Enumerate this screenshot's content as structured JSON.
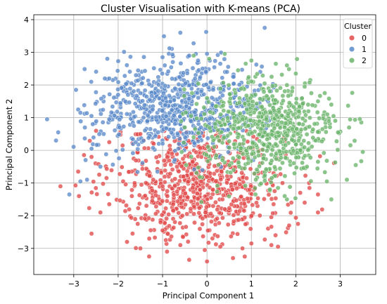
{
  "chart_data": {
    "type": "scatter",
    "title": "Cluster Visualisation with K-means (PCA)",
    "xlabel": "Principal Component 1",
    "ylabel": "Principal Component 2",
    "xlim": [
      -3.9,
      3.8
    ],
    "ylim": [
      -3.8,
      4.15
    ],
    "xticks": [
      -3,
      -2,
      -1,
      0,
      1,
      2,
      3
    ],
    "yticks": [
      -3,
      -2,
      -1,
      0,
      1,
      2,
      3,
      4
    ],
    "grid": true,
    "legend": {
      "title": "Cluster",
      "placement": "top-right"
    },
    "series": [
      {
        "name": "0",
        "color": "#e24a4a",
        "center": [
          -0.2,
          -1.05
        ],
        "spread": [
          0.95,
          0.85
        ],
        "count": 700,
        "points": [
          [
            -3.3,
            -1.1
          ],
          [
            -2.6,
            -2.55
          ],
          [
            -2.4,
            -1.9
          ],
          [
            -2.2,
            -1.65
          ],
          [
            -1.8,
            -2.8
          ],
          [
            -1.5,
            -3.0
          ],
          [
            -1.3,
            -2.7
          ],
          [
            -1.0,
            -2.45
          ],
          [
            -0.9,
            -3.1
          ],
          [
            -0.6,
            -2.9
          ],
          [
            -0.4,
            -3.35
          ],
          [
            -0.05,
            -3.05
          ],
          [
            0.0,
            -3.4
          ],
          [
            0.3,
            -2.95
          ],
          [
            0.8,
            -3.0
          ],
          [
            1.0,
            -2.85
          ],
          [
            0.85,
            -3.25
          ],
          [
            1.45,
            -2.9
          ],
          [
            1.6,
            -2.95
          ],
          [
            1.85,
            -2.3
          ],
          [
            2.05,
            -2.25
          ],
          [
            2.2,
            -1.6
          ],
          [
            2.5,
            -1.9
          ],
          [
            1.9,
            -1.6
          ],
          [
            1.5,
            -1.65
          ],
          [
            2.1,
            -1.3
          ],
          [
            -2.9,
            -0.65
          ],
          [
            -2.6,
            -0.2
          ],
          [
            -2.2,
            0.25
          ],
          [
            -1.9,
            0.15
          ],
          [
            -1.5,
            0.5
          ],
          [
            -1.2,
            0.2
          ],
          [
            -0.9,
            0.35
          ],
          [
            -0.6,
            0.55
          ],
          [
            0.2,
            0.45
          ],
          [
            0.5,
            0.1
          ],
          [
            0.9,
            -0.2
          ],
          [
            1.2,
            -0.4
          ],
          [
            1.5,
            -0.7
          ],
          [
            1.7,
            -1.0
          ],
          [
            2.3,
            -1.0
          ],
          [
            2.5,
            -1.35
          ]
        ]
      },
      {
        "name": "1",
        "color": "#5b8bc9",
        "center": [
          -0.65,
          1.3
        ],
        "spread": [
          0.95,
          0.7
        ],
        "count": 680,
        "points": [
          [
            -3.6,
            0.95
          ],
          [
            -3.4,
            0.3
          ],
          [
            -3.35,
            0.55
          ],
          [
            -3.1,
            -1.35
          ],
          [
            -2.95,
            1.85
          ],
          [
            -2.9,
            1.25
          ],
          [
            -2.85,
            1.15
          ],
          [
            -2.75,
            0.7
          ],
          [
            -2.6,
            0.05
          ],
          [
            -2.4,
            -0.5
          ],
          [
            -2.3,
            2.2
          ],
          [
            -2.2,
            2.2
          ],
          [
            -2.0,
            1.7
          ],
          [
            -1.95,
            1.45
          ],
          [
            -1.7,
            2.05
          ],
          [
            -1.6,
            2.3
          ],
          [
            -1.5,
            1.75
          ],
          [
            -1.0,
            2.85
          ],
          [
            -0.95,
            2.6
          ],
          [
            -0.6,
            3.6
          ],
          [
            -0.4,
            2.9
          ],
          [
            -0.2,
            2.75
          ],
          [
            -0.25,
            2.95
          ],
          [
            -0.1,
            2.5
          ],
          [
            0.3,
            2.65
          ],
          [
            0.45,
            2.4
          ],
          [
            0.6,
            2.25
          ],
          [
            1.3,
            3.75
          ],
          [
            1.2,
            2.4
          ],
          [
            0.9,
            1.95
          ],
          [
            1.35,
            1.55
          ],
          [
            1.5,
            1.2
          ],
          [
            -2.7,
            -0.9
          ],
          [
            -2.85,
            -0.95
          ]
        ]
      },
      {
        "name": "2",
        "color": "#6bb56b",
        "center": [
          1.35,
          0.6
        ],
        "spread": [
          0.8,
          0.8
        ],
        "count": 620,
        "points": [
          [
            -0.3,
            2.9
          ],
          [
            0.05,
            2.8
          ],
          [
            0.4,
            2.95
          ],
          [
            0.7,
            2.45
          ],
          [
            1.0,
            2.75
          ],
          [
            1.55,
            2.65
          ],
          [
            1.8,
            2.6
          ],
          [
            2.0,
            2.35
          ],
          [
            2.2,
            1.95
          ],
          [
            2.35,
            1.75
          ],
          [
            2.5,
            1.5
          ],
          [
            2.8,
            1.4
          ],
          [
            2.85,
            1.05
          ],
          [
            2.95,
            0.55
          ],
          [
            3.2,
            0.7
          ],
          [
            3.35,
            -0.45
          ],
          [
            3.15,
            -0.9
          ],
          [
            2.8,
            -1.5
          ],
          [
            2.7,
            -0.95
          ],
          [
            2.5,
            -0.35
          ],
          [
            2.25,
            -0.5
          ],
          [
            2.1,
            0.0
          ],
          [
            2.6,
            0.65
          ],
          [
            2.45,
            0.3
          ],
          [
            -0.5,
            0.7
          ],
          [
            -0.3,
            0.4
          ],
          [
            0.0,
            1.6
          ],
          [
            0.2,
            1.35
          ],
          [
            0.35,
            -0.3
          ],
          [
            0.6,
            -0.6
          ],
          [
            0.85,
            -0.55
          ],
          [
            1.1,
            -0.9
          ],
          [
            1.6,
            -1.15
          ],
          [
            1.75,
            -1.4
          ]
        ]
      }
    ]
  }
}
